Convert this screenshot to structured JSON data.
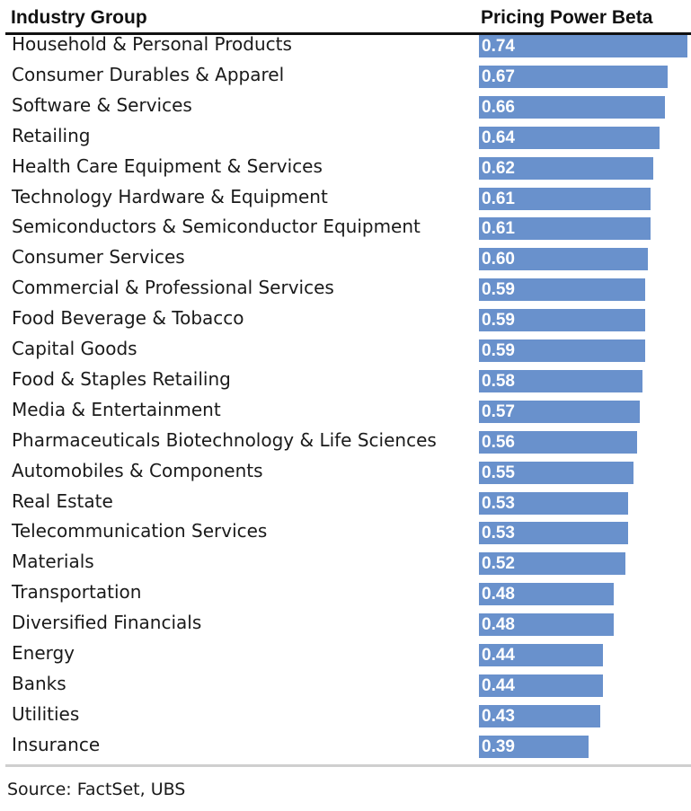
{
  "chart_data": {
    "type": "bar",
    "orientation": "horizontal",
    "header_category": "Industry Group",
    "header_value": "Pricing Power Beta",
    "categories": [
      "Household & Personal Products",
      "Consumer Durables & Apparel",
      "Software & Services",
      "Retailing",
      "Health Care Equipment & Services",
      "Technology Hardware & Equipment",
      "Semiconductors & Semiconductor Equipment",
      "Consumer Services",
      "Commercial & Professional Services",
      "Food Beverage & Tobacco",
      "Capital Goods",
      "Food & Staples Retailing",
      "Media & Entertainment",
      "Pharmaceuticals Biotechnology & Life Sciences",
      "Automobiles & Components",
      "Real Estate",
      "Telecommunication Services",
      "Materials",
      "Transportation",
      "Diversified Financials",
      "Energy",
      "Banks",
      "Utilities",
      "Insurance"
    ],
    "values": [
      0.74,
      0.67,
      0.66,
      0.64,
      0.62,
      0.61,
      0.61,
      0.6,
      0.59,
      0.59,
      0.59,
      0.58,
      0.57,
      0.56,
      0.55,
      0.53,
      0.53,
      0.52,
      0.48,
      0.48,
      0.44,
      0.44,
      0.43,
      0.39
    ],
    "xlim": [
      0,
      0.74
    ],
    "bar_color": "#6991cc",
    "value_label_color": "#ffffff",
    "grid": false,
    "legend": "none"
  },
  "footer": {
    "source": "Source: FactSet, UBS"
  }
}
